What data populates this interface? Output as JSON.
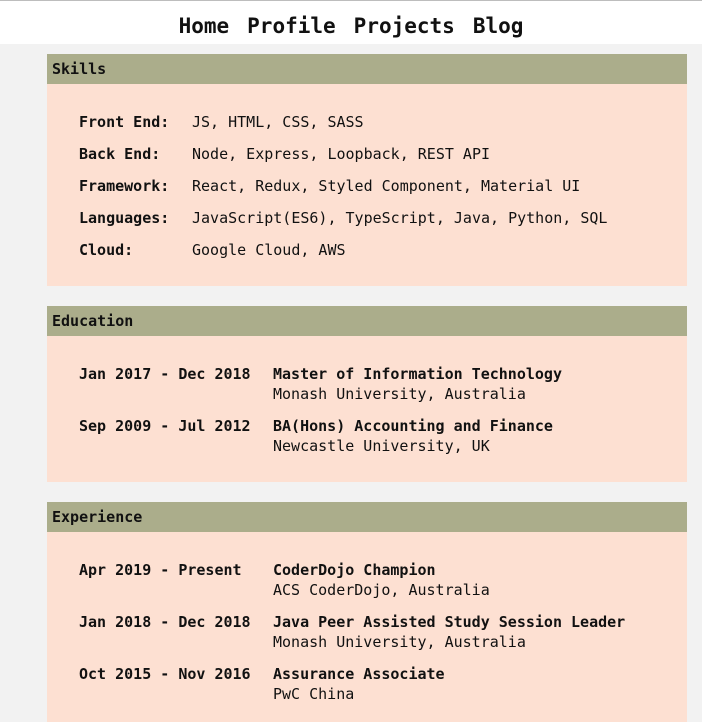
{
  "nav": {
    "items": [
      "Home",
      "Profile",
      "Projects",
      "Blog"
    ]
  },
  "skills": {
    "heading": "Skills",
    "rows": [
      {
        "label": "Front End:",
        "value": "JS, HTML, CSS, SASS"
      },
      {
        "label": "Back End:",
        "value": "Node, Express, Loopback, REST API"
      },
      {
        "label": "Framework:",
        "value": "React, Redux, Styled Component, Material UI"
      },
      {
        "label": "Languages:",
        "value": "JavaScript(ES6), TypeScript, Java, Python, SQL"
      },
      {
        "label": "Cloud:",
        "value": "Google Cloud, AWS"
      }
    ]
  },
  "education": {
    "heading": "Education",
    "rows": [
      {
        "date": "Jan 2017 - Dec 2018",
        "title": "Master of Information Technology",
        "subtitle": "Monash University, Australia"
      },
      {
        "date": "Sep 2009 - Jul 2012",
        "title": "BA(Hons) Accounting and Finance",
        "subtitle": "Newcastle University, UK"
      }
    ]
  },
  "experience": {
    "heading": "Experience",
    "rows": [
      {
        "date": "Apr 2019 - Present",
        "title": "CoderDojo Champion",
        "subtitle": "ACS CoderDojo, Australia"
      },
      {
        "date": "Jan 2018 - Dec 2018",
        "title": "Java Peer Assisted Study Session Leader",
        "subtitle": "Monash University, Australia"
      },
      {
        "date": "Oct 2015 - Nov 2016",
        "title": "Assurance Associate",
        "subtitle": "PwC China"
      }
    ]
  },
  "colors": {
    "page_background": "#f2f2f2",
    "header_bar": "#abad8b",
    "section_background": "#fde0d2"
  }
}
